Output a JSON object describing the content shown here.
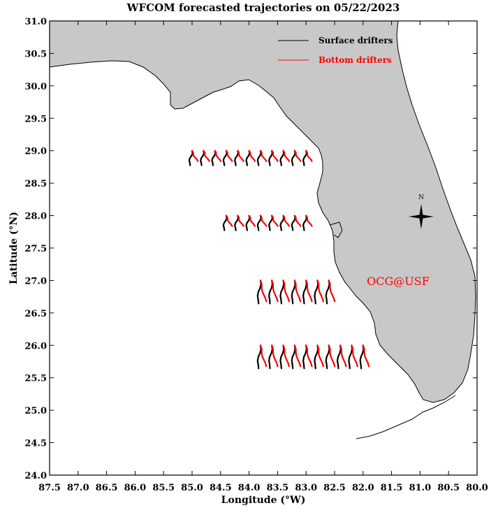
{
  "chart_data": {
    "type": "line",
    "title": "WFCOM forecasted trajectories on 05/22/2023",
    "xlabel": "Longitude (°W)",
    "ylabel": "Latitude (°N)",
    "xlim": [
      87.5,
      80.0
    ],
    "ylim": [
      24.0,
      31.0
    ],
    "x_ticks": [
      "87.5",
      "87.0",
      "86.5",
      "86.0",
      "85.5",
      "85.0",
      "84.5",
      "84.0",
      "83.5",
      "83.0",
      "82.5",
      "82.0",
      "81.5",
      "81.0",
      "80.5",
      "80.0"
    ],
    "y_ticks": [
      "24.0",
      "24.5",
      "25.0",
      "25.5",
      "26.0",
      "26.5",
      "27.0",
      "27.5",
      "28.0",
      "28.5",
      "29.0",
      "29.5",
      "30.0",
      "30.5",
      "31.0"
    ],
    "legend_position": "top-right",
    "series": [
      {
        "name": "Surface drifters",
        "color": "#000000"
      },
      {
        "name": "Bottom drifters",
        "color": "#ff0000"
      }
    ],
    "release_rows": [
      {
        "lat": 29.0,
        "lons": [
          85.0,
          84.8,
          84.6,
          84.4,
          84.2,
          84.0,
          83.8,
          83.6,
          83.4,
          83.2,
          83.0
        ]
      },
      {
        "lat": 28.0,
        "lons": [
          84.4,
          84.2,
          84.0,
          83.8,
          83.6,
          83.4,
          83.2,
          83.0
        ]
      },
      {
        "lat": 27.0,
        "lons": [
          83.8,
          83.6,
          83.4,
          83.2,
          83.0,
          82.8,
          82.6
        ]
      },
      {
        "lat": 26.0,
        "lons": [
          83.8,
          83.6,
          83.4,
          83.2,
          83.0,
          82.8,
          82.6,
          82.4,
          82.2,
          82.0
        ]
      }
    ],
    "grid": false,
    "annotation": "OCG@USF",
    "compass_label": "N"
  },
  "colors": {
    "land": "#c8c8c8",
    "coast": "#000000",
    "surface": "#000000",
    "bottom": "#ff0000",
    "credit": "#ff0000"
  }
}
